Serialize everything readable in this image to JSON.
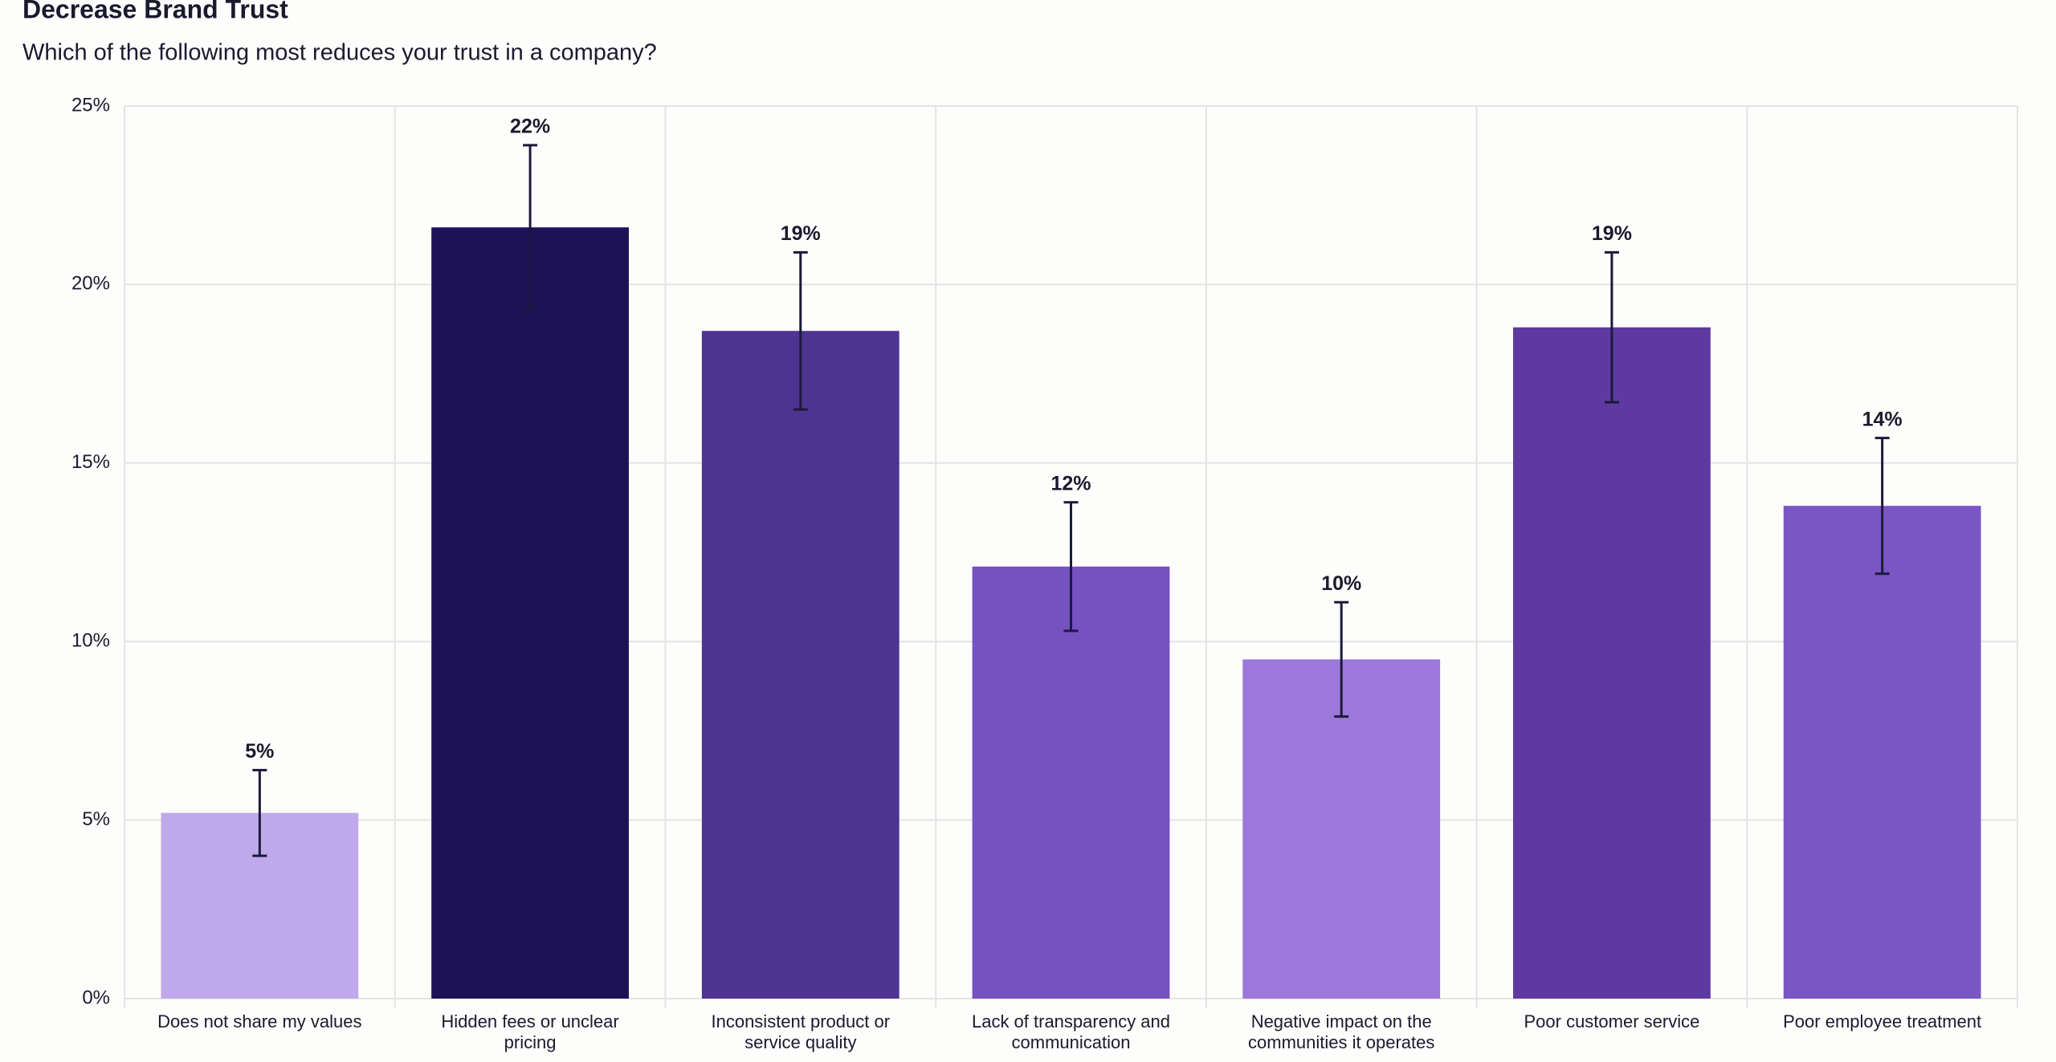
{
  "chart_data": {
    "type": "bar",
    "title": "Decrease Brand Trust",
    "subtitle": "Which of the following most reduces your trust in a company?",
    "categories": [
      "Does not share my values",
      "Hidden fees or unclear pricing",
      "Inconsistent product or service quality",
      "Lack of transparency and communication",
      "Negative impact on the communities it operates",
      "Poor customer service",
      "Poor employee treatment"
    ],
    "values": [
      5.2,
      21.6,
      18.7,
      12.1,
      9.5,
      18.8,
      13.8
    ],
    "value_labels": [
      "5%",
      "22%",
      "19%",
      "12%",
      "10%",
      "19%",
      "14%"
    ],
    "errors": [
      1.2,
      2.3,
      2.2,
      1.8,
      1.6,
      2.1,
      1.9
    ],
    "colors": [
      "#c0a9ea",
      "#1e1257",
      "#4f3391",
      "#7552c0",
      "#9b78da",
      "#5e3aa0",
      "#7a55c4"
    ],
    "ylim": [
      0,
      25
    ],
    "yticks": [
      {
        "value": 0,
        "label": "0%"
      },
      {
        "value": 5,
        "label": "5%"
      },
      {
        "value": 10,
        "label": "10%"
      },
      {
        "value": 15,
        "label": "15%"
      },
      {
        "value": 20,
        "label": "20%"
      },
      {
        "value": 25,
        "label": "25%"
      }
    ],
    "grid": true
  }
}
